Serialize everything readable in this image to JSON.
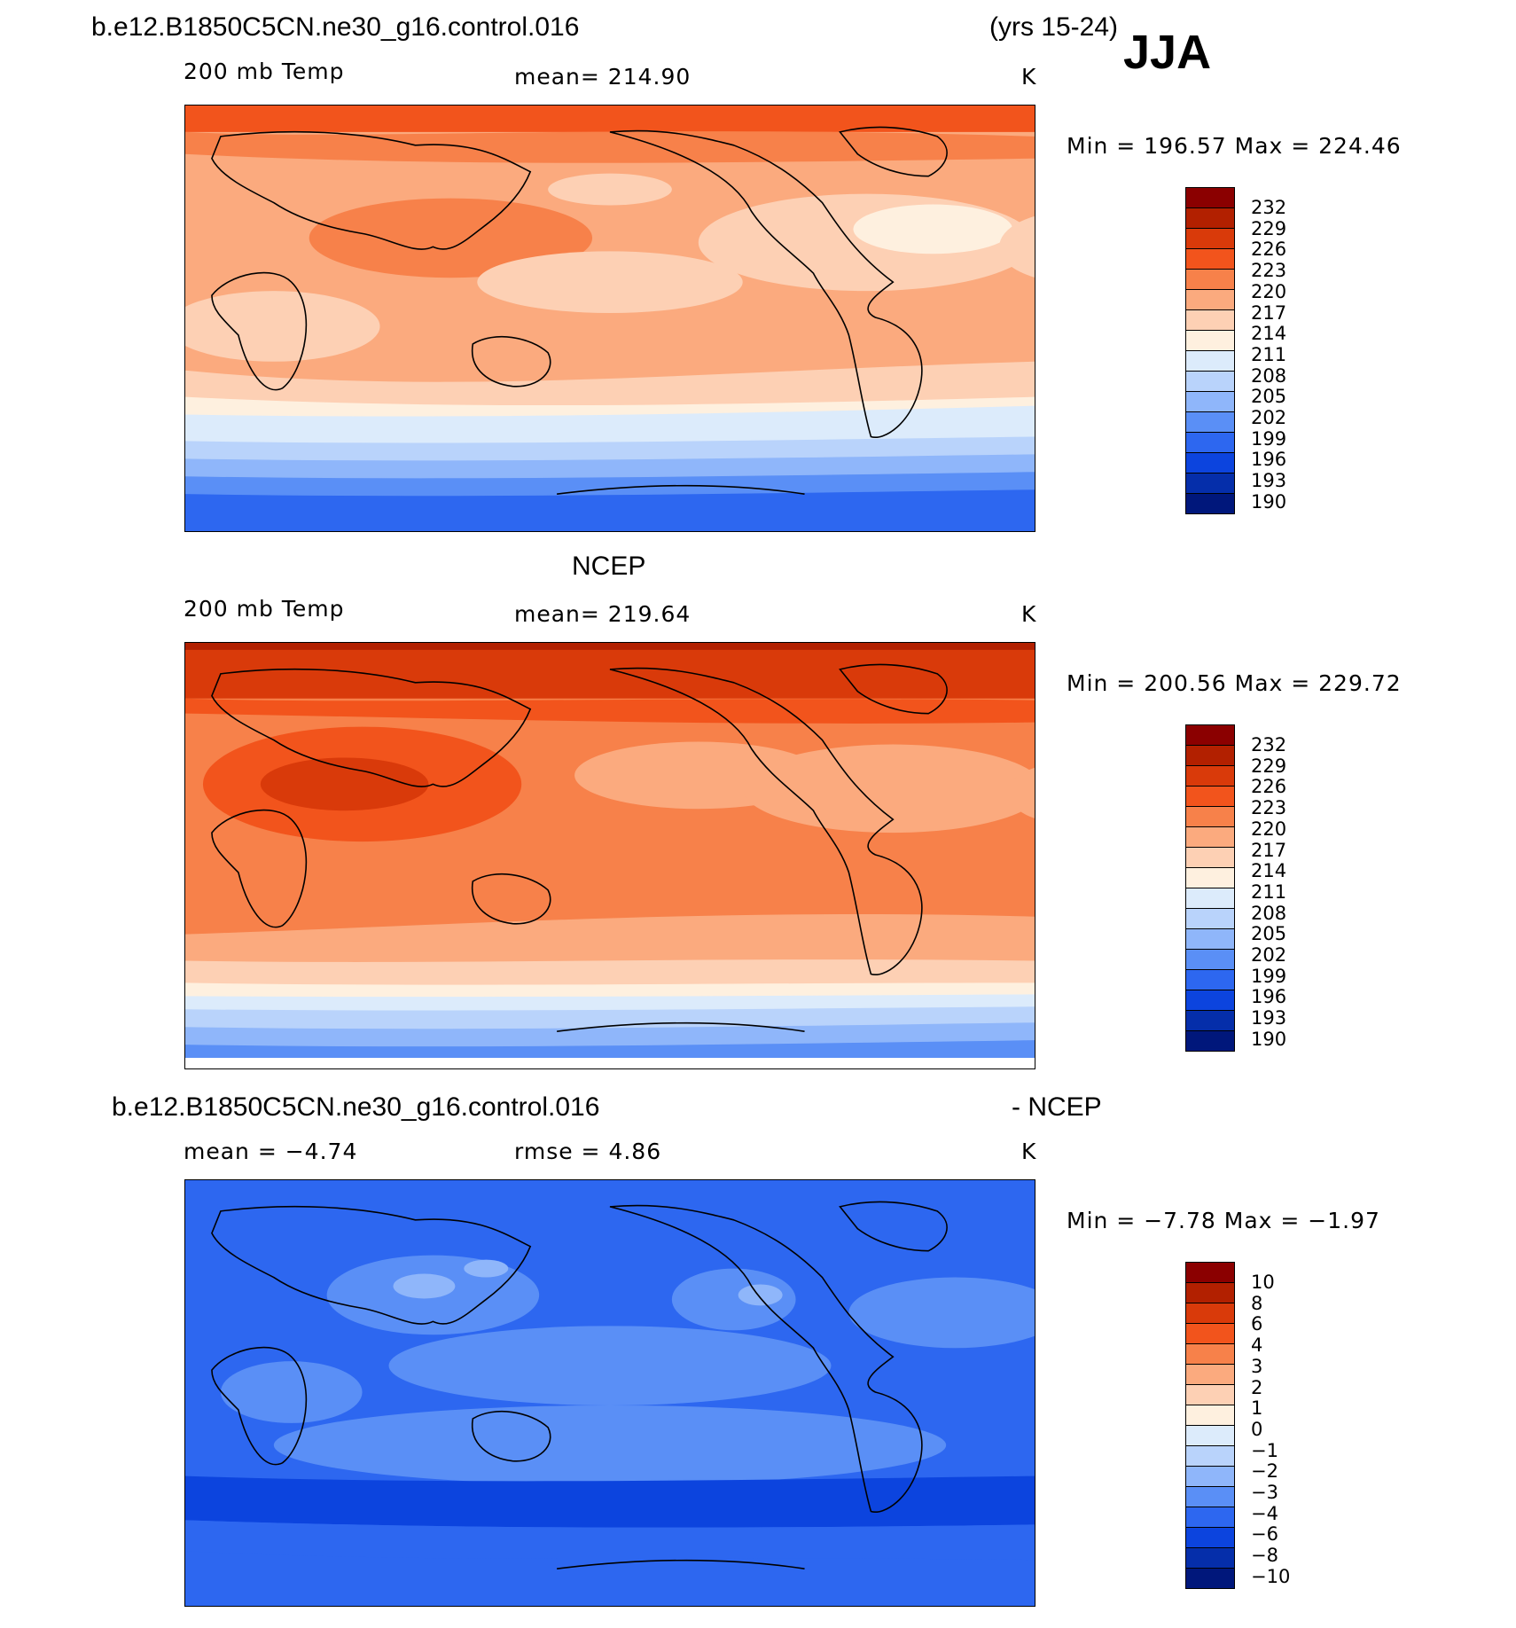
{
  "header": {
    "case_name": "b.e12.B1850C5CN.ne30_g16.control.016",
    "years": "(yrs 15-24)",
    "season": "JJA"
  },
  "panels": [
    {
      "variable": "200 mb Temp",
      "mean": "mean= 214.90",
      "units": "K",
      "minmax": "Min = 196.57 Max = 224.46",
      "colorbar_labels": [
        "232",
        "229",
        "226",
        "223",
        "220",
        "217",
        "214",
        "211",
        "208",
        "205",
        "202",
        "199",
        "196",
        "193",
        "190"
      ]
    },
    {
      "title": "NCEP",
      "variable": "200 mb Temp",
      "mean": "mean= 219.64",
      "units": "K",
      "minmax": "Min = 200.56 Max = 229.72",
      "colorbar_labels": [
        "232",
        "229",
        "226",
        "223",
        "220",
        "217",
        "214",
        "211",
        "208",
        "205",
        "202",
        "199",
        "196",
        "193",
        "190"
      ]
    },
    {
      "title_left": "b.e12.B1850C5CN.ne30_g16.control.016",
      "title_right": "- NCEP",
      "mean": "mean = −4.74",
      "rmse": "rmse = 4.86",
      "units": "K",
      "minmax": "Min = −7.78 Max = −1.97",
      "colorbar_labels": [
        "10",
        "8",
        "6",
        "4",
        "3",
        "2",
        "1",
        "0",
        "−1",
        "−2",
        "−3",
        "−4",
        "−6",
        "−8",
        "−10"
      ]
    }
  ],
  "colors": {
    "colorbar": [
      "#8b0000",
      "#b22000",
      "#d93a0a",
      "#f2541c",
      "#f7814a",
      "#fbaa7e",
      "#fdd0b4",
      "#fef0df",
      "#dcebfb",
      "#b9d3fb",
      "#8fb6fa",
      "#5a8ff6",
      "#2d67f0",
      "#0c44de",
      "#052eaa",
      "#00177b"
    ]
  }
}
